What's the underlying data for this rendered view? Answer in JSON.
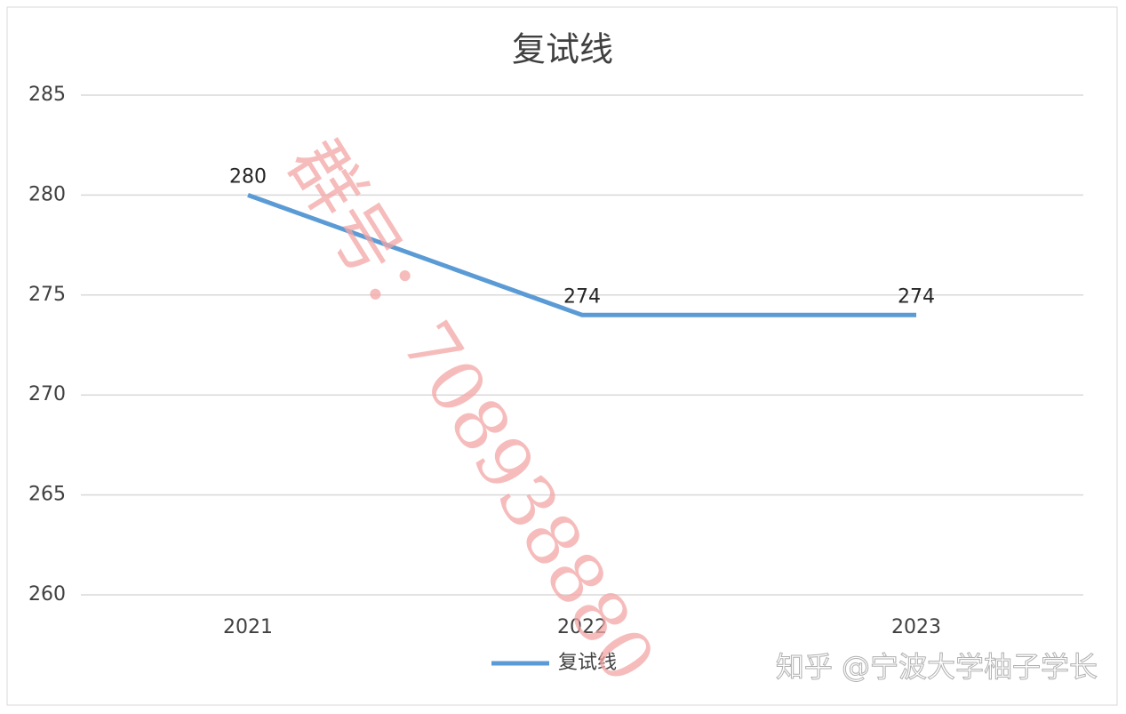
{
  "chart_data": {
    "type": "line",
    "title": "复试线",
    "categories": [
      "2021",
      "2022",
      "2023"
    ],
    "series": [
      {
        "name": "复试线",
        "color": "#5b9bd5",
        "values": [
          280,
          274,
          274
        ]
      }
    ],
    "ylim": [
      260,
      285
    ],
    "yticks": [
      260,
      265,
      270,
      275,
      280,
      285
    ],
    "grid": true,
    "legend": "bottom",
    "annotations": [
      "群号：708938880",
      "知乎 @宁波大学柚子学长"
    ]
  }
}
